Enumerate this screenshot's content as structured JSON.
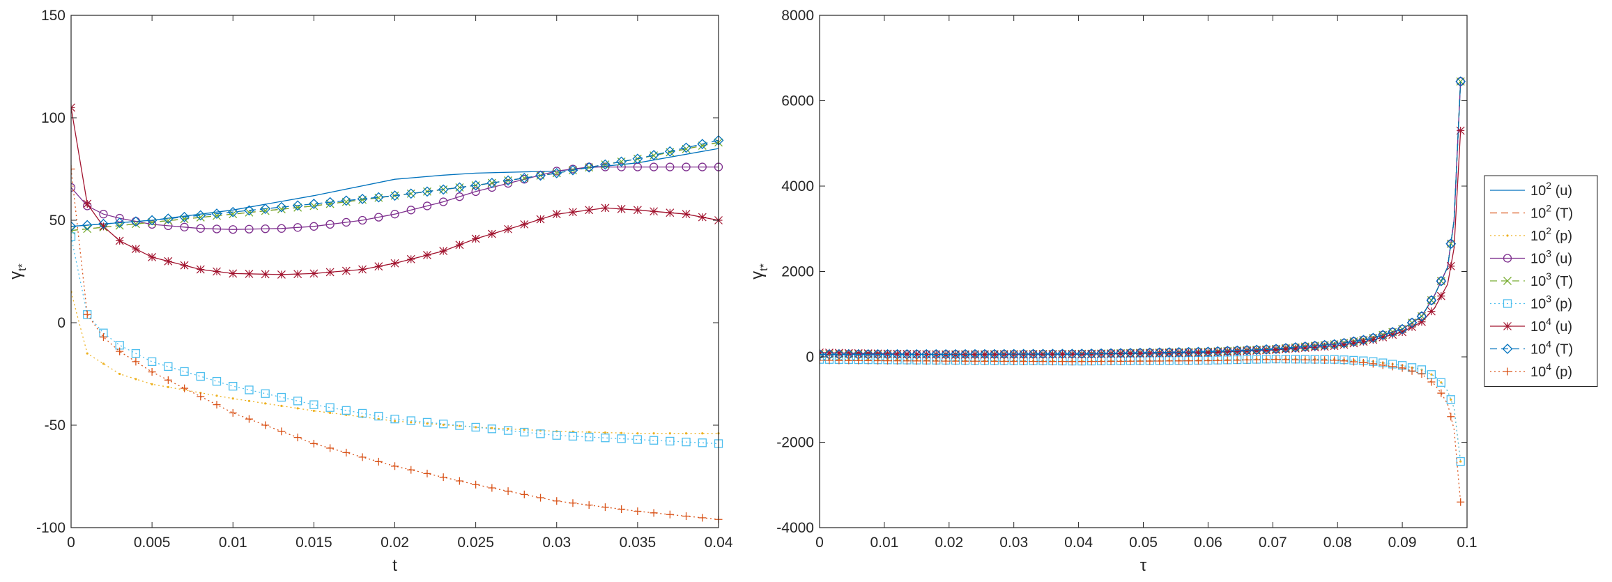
{
  "legend": [
    {
      "base": "10",
      "exp": "2",
      "var": "(u)",
      "color": "#0072BD",
      "dash": "",
      "marker": "none"
    },
    {
      "base": "10",
      "exp": "2",
      "var": "(T)",
      "color": "#D95319",
      "dash": "10,6",
      "marker": "none"
    },
    {
      "base": "10",
      "exp": "2",
      "var": "(p)",
      "color": "#EDB120",
      "dash": "2,4",
      "marker": "dot"
    },
    {
      "base": "10",
      "exp": "3",
      "var": "(u)",
      "color": "#7E2F8E",
      "dash": "",
      "marker": "circle"
    },
    {
      "base": "10",
      "exp": "3",
      "var": "(T)",
      "color": "#77AC30",
      "dash": "10,6",
      "marker": "x"
    },
    {
      "base": "10",
      "exp": "3",
      "var": "(p)",
      "color": "#4DBEEE",
      "dash": "2,4",
      "marker": "square"
    },
    {
      "base": "10",
      "exp": "4",
      "var": "(u)",
      "color": "#A2142F",
      "dash": "",
      "marker": "star"
    },
    {
      "base": "10",
      "exp": "4",
      "var": "(T)",
      "color": "#0072BD",
      "dash": "10,6",
      "marker": "diamond"
    },
    {
      "base": "10",
      "exp": "4",
      "var": "(p)",
      "color": "#D95319",
      "dash": "2,4",
      "marker": "plus"
    }
  ],
  "chart_data": [
    {
      "type": "line",
      "xlabel": "t",
      "ylabel_main": "γ",
      "ylabel_sub": "t*",
      "xlim": [
        0,
        0.04
      ],
      "ylim": [
        -100,
        150
      ],
      "xticks": [
        "0",
        "0.005",
        "0.01",
        "0.015",
        "0.02",
        "0.025",
        "0.03",
        "0.035",
        "0.04"
      ],
      "yticks": [
        "-100",
        "-50",
        "0",
        "50",
        "100",
        "150"
      ],
      "grid": false,
      "series": [
        {
          "legend_index": 0,
          "x": [
            0,
            0.005,
            0.01,
            0.015,
            0.02,
            0.023,
            0.025,
            0.03,
            0.035,
            0.04
          ],
          "y": [
            47,
            50,
            55,
            62,
            70,
            72,
            73,
            74,
            78,
            85
          ]
        },
        {
          "legend_index": 1,
          "x": [
            0,
            0.005,
            0.01,
            0.015,
            0.02,
            0.025,
            0.03,
            0.035,
            0.04
          ],
          "y": [
            45,
            49,
            53,
            57,
            62,
            67,
            73,
            80,
            88
          ]
        },
        {
          "legend_index": 2,
          "x": [
            0,
            0.001,
            0.003,
            0.005,
            0.01,
            0.015,
            0.02,
            0.025,
            0.03,
            0.035,
            0.04
          ],
          "y": [
            15,
            -15,
            -25,
            -30,
            -37,
            -43,
            -48,
            -51,
            -53,
            -54,
            -54
          ]
        },
        {
          "legend_index": 3,
          "x": [
            0,
            0.001,
            0.002,
            0.003,
            0.005,
            0.008,
            0.01,
            0.013,
            0.015,
            0.018,
            0.02,
            0.023,
            0.025,
            0.028,
            0.03,
            0.032,
            0.035,
            0.04
          ],
          "y": [
            66,
            57,
            53,
            51,
            48,
            46,
            45.5,
            46,
            47,
            50,
            53,
            59,
            64,
            70,
            74,
            76,
            76,
            76
          ]
        },
        {
          "legend_index": 4,
          "x": [
            0,
            0.005,
            0.01,
            0.015,
            0.02,
            0.025,
            0.03,
            0.035,
            0.04
          ],
          "y": [
            45,
            49,
            53,
            57,
            62,
            67,
            73,
            80,
            88
          ]
        },
        {
          "legend_index": 5,
          "x": [
            0,
            0.001,
            0.002,
            0.003,
            0.005,
            0.01,
            0.015,
            0.02,
            0.025,
            0.03,
            0.035,
            0.04
          ],
          "y": [
            42,
            4,
            -5,
            -11,
            -19,
            -31,
            -40,
            -47,
            -51,
            -55,
            -57,
            -59
          ]
        },
        {
          "legend_index": 6,
          "x": [
            0,
            0.001,
            0.002,
            0.003,
            0.005,
            0.008,
            0.01,
            0.013,
            0.015,
            0.018,
            0.02,
            0.023,
            0.025,
            0.028,
            0.03,
            0.033,
            0.035,
            0.038,
            0.04
          ],
          "y": [
            105,
            58,
            47,
            40,
            32,
            26,
            24,
            23.5,
            24,
            26,
            29,
            35,
            41,
            48,
            53,
            56,
            55,
            53,
            50
          ]
        },
        {
          "legend_index": 7,
          "x": [
            0,
            0.005,
            0.01,
            0.015,
            0.02,
            0.025,
            0.03,
            0.035,
            0.04
          ],
          "y": [
            47,
            50,
            54,
            58,
            62,
            67,
            73,
            80,
            89
          ]
        },
        {
          "legend_index": 8,
          "x": [
            0,
            0.001,
            0.002,
            0.003,
            0.005,
            0.01,
            0.015,
            0.02,
            0.025,
            0.03,
            0.035,
            0.04
          ],
          "y": [
            75,
            4,
            -7,
            -14,
            -24,
            -44,
            -59,
            -70,
            -79,
            -87,
            -92,
            -96
          ]
        }
      ]
    },
    {
      "type": "line",
      "xlabel": "τ",
      "ylabel_main": "γ",
      "ylabel_sub": "t*",
      "xlim": [
        0,
        0.1
      ],
      "ylim": [
        -4000,
        8000
      ],
      "xticks": [
        "0",
        "0.01",
        "0.02",
        "0.03",
        "0.04",
        "0.05",
        "0.06",
        "0.07",
        "0.08",
        "0.09",
        "0.1"
      ],
      "yticks": [
        "-4000",
        "-2000",
        "0",
        "2000",
        "4000",
        "6000",
        "8000"
      ],
      "grid": false,
      "series": [
        {
          "legend_index": 0,
          "x": [
            0,
            0.02,
            0.04,
            0.06,
            0.07,
            0.08,
            0.085,
            0.09,
            0.093,
            0.095,
            0.097,
            0.098,
            0.099
          ],
          "y": [
            60,
            60,
            70,
            120,
            180,
            300,
            420,
            650,
            950,
            1450,
            2100,
            3200,
            6450
          ]
        },
        {
          "legend_index": 1,
          "x": [
            0,
            0.02,
            0.04,
            0.06,
            0.07,
            0.08,
            0.085,
            0.09,
            0.093,
            0.095,
            0.097,
            0.098,
            0.099
          ],
          "y": [
            60,
            60,
            70,
            120,
            180,
            300,
            420,
            650,
            950,
            1450,
            2100,
            3200,
            6450
          ]
        },
        {
          "legend_index": 2,
          "x": [
            0,
            0.02,
            0.04,
            0.06,
            0.07,
            0.08,
            0.085,
            0.09,
            0.093,
            0.095,
            0.096,
            0.097,
            0.098,
            0.099
          ],
          "y": [
            -60,
            -80,
            -100,
            -80,
            -50,
            -60,
            -100,
            -200,
            -300,
            -450,
            -600,
            -800,
            -1200,
            -2450
          ]
        },
        {
          "legend_index": 3,
          "x": [
            0,
            0.02,
            0.04,
            0.06,
            0.07,
            0.08,
            0.085,
            0.09,
            0.093,
            0.095,
            0.097,
            0.098,
            0.099
          ],
          "y": [
            60,
            60,
            70,
            120,
            180,
            300,
            420,
            650,
            950,
            1450,
            2100,
            3200,
            6450
          ]
        },
        {
          "legend_index": 4,
          "x": [
            0,
            0.02,
            0.04,
            0.06,
            0.07,
            0.08,
            0.085,
            0.09,
            0.093,
            0.095,
            0.097,
            0.098,
            0.099
          ],
          "y": [
            60,
            60,
            70,
            120,
            180,
            300,
            420,
            650,
            950,
            1450,
            2100,
            3200,
            6450
          ]
        },
        {
          "legend_index": 5,
          "x": [
            0,
            0.02,
            0.04,
            0.06,
            0.07,
            0.08,
            0.085,
            0.09,
            0.093,
            0.095,
            0.096,
            0.097,
            0.098,
            0.099
          ],
          "y": [
            -60,
            -80,
            -100,
            -80,
            -50,
            -60,
            -100,
            -200,
            -300,
            -450,
            -600,
            -800,
            -1200,
            -2450
          ]
        },
        {
          "legend_index": 6,
          "x": [
            0,
            0.02,
            0.04,
            0.06,
            0.07,
            0.08,
            0.085,
            0.09,
            0.093,
            0.095,
            0.097,
            0.098,
            0.099
          ],
          "y": [
            100,
            50,
            60,
            100,
            160,
            260,
            380,
            580,
            820,
            1150,
            1700,
            2550,
            5300
          ]
        },
        {
          "legend_index": 7,
          "x": [
            0,
            0.02,
            0.04,
            0.06,
            0.07,
            0.08,
            0.085,
            0.09,
            0.093,
            0.095,
            0.097,
            0.098,
            0.099
          ],
          "y": [
            60,
            60,
            70,
            120,
            180,
            300,
            420,
            650,
            950,
            1450,
            2100,
            3200,
            6450
          ]
        },
        {
          "legend_index": 8,
          "x": [
            0,
            0.02,
            0.04,
            0.06,
            0.07,
            0.08,
            0.085,
            0.09,
            0.093,
            0.095,
            0.096,
            0.097,
            0.098,
            0.099
          ],
          "y": [
            -80,
            -100,
            -110,
            -90,
            -60,
            -80,
            -150,
            -260,
            -400,
            -650,
            -850,
            -1100,
            -1700,
            -3400
          ]
        }
      ]
    }
  ]
}
